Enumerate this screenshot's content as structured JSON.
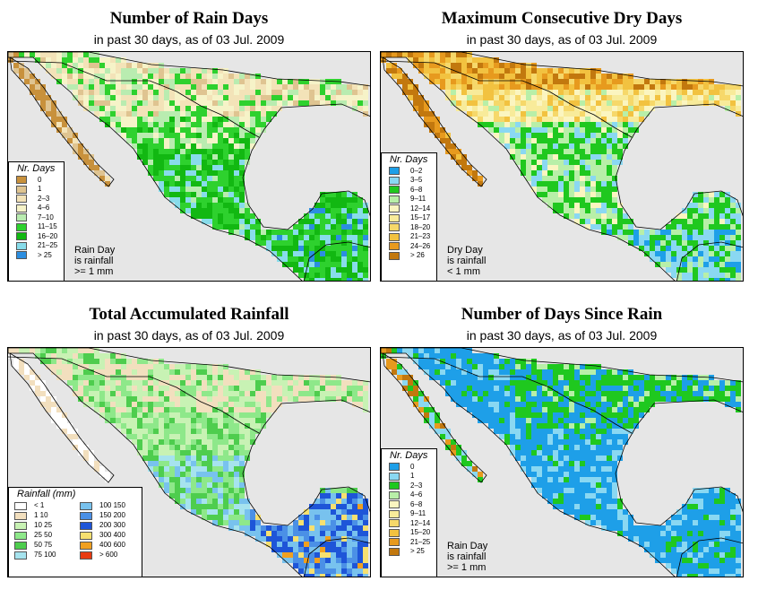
{
  "panels": [
    {
      "id": "rain_days",
      "title": "Number of Rain Days",
      "subtitle": "in past 30 days, as of  03 Jul. 2009",
      "legend_title": "Nr. Days",
      "legend": [
        {
          "label": "0",
          "color": "#c8913c"
        },
        {
          "label": "1",
          "color": "#dfc491"
        },
        {
          "label": "2–3",
          "color": "#f3e3b8"
        },
        {
          "label": "4–6",
          "color": "#f6f3c8"
        },
        {
          "label": "7–10",
          "color": "#b9ecb0"
        },
        {
          "label": "11–15",
          "color": "#2ed12e"
        },
        {
          "label": "16–20",
          "color": "#12b812"
        },
        {
          "label": "21–25",
          "color": "#88dcea"
        },
        {
          "label": "> 25",
          "color": "#2c8ee0"
        }
      ],
      "note": [
        "Rain Day",
        "is rainfall",
        ">= 1 mm"
      ]
    },
    {
      "id": "dry_days",
      "title": "Maximum Consecutive Dry Days",
      "subtitle": "in past 30 days, as of  03 Jul. 2009",
      "legend_title": "Nr. Days",
      "legend": [
        {
          "label": "0–2",
          "color": "#1e9fe8"
        },
        {
          "label": "3–5",
          "color": "#8ad8f2"
        },
        {
          "label": "6–8",
          "color": "#1fc81f"
        },
        {
          "label": "9–11",
          "color": "#b8efa8"
        },
        {
          "label": "12–14",
          "color": "#fbf5c0"
        },
        {
          "label": "15–17",
          "color": "#f8eb9a"
        },
        {
          "label": "18–20",
          "color": "#f6d86a"
        },
        {
          "label": "21–23",
          "color": "#f2c240"
        },
        {
          "label": "24–26",
          "color": "#e79a1e"
        },
        {
          "label": "> 26",
          "color": "#c2780e"
        }
      ],
      "note": [
        "Dry Day",
        "is rainfall",
        "< 1 mm"
      ]
    },
    {
      "id": "rainfall",
      "title": "Total Accumulated Rainfall",
      "subtitle": "in past 30 days, as of  03 Jul. 2009",
      "legend_title": "Rainfall (mm)",
      "legend": [
        {
          "label": "< 1",
          "color": "#ffffff"
        },
        {
          "label": "1    10",
          "color": "#f2dfbe"
        },
        {
          "label": "10    25",
          "color": "#c8f2b4"
        },
        {
          "label": "25    50",
          "color": "#8ee88a"
        },
        {
          "label": "50    75",
          "color": "#4ecd4e"
        },
        {
          "label": "75  100",
          "color": "#a6e3ee"
        },
        {
          "label": "100  150",
          "color": "#78c2ee"
        },
        {
          "label": "150  200",
          "color": "#4b90e6"
        },
        {
          "label": "200  300",
          "color": "#1e55d8"
        },
        {
          "label": "300  400",
          "color": "#f6e070"
        },
        {
          "label": "400  600",
          "color": "#f0a020"
        },
        {
          "label": "> 600",
          "color": "#e83a10"
        }
      ]
    },
    {
      "id": "since_rain",
      "title": "Number of Days Since Rain",
      "subtitle": "in past 30 days, as of  03 Jul. 2009",
      "legend_title": "Nr. Days",
      "legend": [
        {
          "label": "0",
          "color": "#1e9fe8"
        },
        {
          "label": "1",
          "color": "#8ad8f2"
        },
        {
          "label": "2–3",
          "color": "#1fc81f"
        },
        {
          "label": "4–6",
          "color": "#b8efa8"
        },
        {
          "label": "6–8",
          "color": "#fbf5c0"
        },
        {
          "label": "9–11",
          "color": "#f8eb9a"
        },
        {
          "label": "12–14",
          "color": "#f6d86a"
        },
        {
          "label": "15–20",
          "color": "#f2c240"
        },
        {
          "label": "21–25",
          "color": "#e79a1e"
        },
        {
          "label": "> 25",
          "color": "#c2780e"
        }
      ],
      "note": [
        "Rain Day",
        "is rainfall",
        ">= 1 mm"
      ]
    }
  ],
  "colors": {
    "ocean": "#e6e6e6"
  }
}
